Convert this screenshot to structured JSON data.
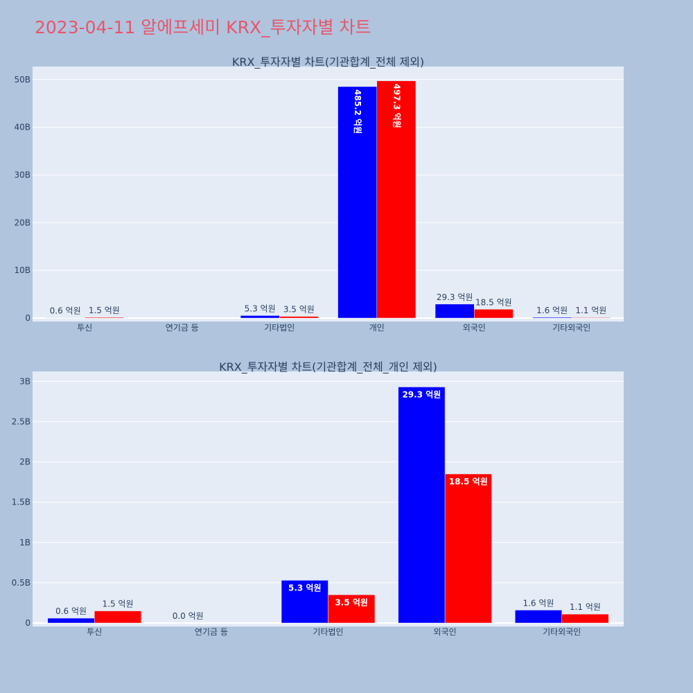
{
  "page_title": "2023-04-11 알에프세미 KRX_투자자별 차트",
  "colors": {
    "background": "#b0c4de",
    "plot_bg": "#e5ecf6",
    "grid": "#ffffff",
    "title": "#e8556a",
    "text": "#2a3f5f",
    "series_a": "#0000ff",
    "series_b": "#ff0000"
  },
  "chart_data": [
    {
      "type": "bar",
      "title": "KRX_투자자별 차트(기관합계_전체 제외)",
      "categories": [
        "투신",
        "연기금 등",
        "기타법인",
        "개인",
        "외국인",
        "기타외국인"
      ],
      "series": [
        {
          "color": "#0000ff",
          "values": [
            60000000,
            null,
            530000000,
            48520000000,
            2930000000,
            160000000
          ],
          "labels": [
            "0.6 억원",
            "",
            "5.3 억원",
            "485.2 억원",
            "29.3 억원",
            "1.6 억원"
          ]
        },
        {
          "color": "#ff0000",
          "values": [
            150000000,
            null,
            350000000,
            49730000000,
            1850000000,
            110000000
          ],
          "labels": [
            "1.5 억원",
            "",
            "3.5 억원",
            "497.3 억원",
            "18.5 억원",
            "1.1 억원"
          ]
        }
      ],
      "yticks": [
        0,
        10000000000,
        20000000000,
        30000000000,
        40000000000,
        50000000000
      ],
      "ytick_labels": [
        "0",
        "10B",
        "20B",
        "30B",
        "40B",
        "50B"
      ],
      "ylim": [
        0,
        52000000000
      ],
      "grid": true,
      "legend": "none"
    },
    {
      "type": "bar",
      "title": "KRX_투자자별 차트(기관합계_전체_개인 제외)",
      "categories": [
        "투신",
        "연기금 등",
        "기타법인",
        "외국인",
        "기타외국인"
      ],
      "series": [
        {
          "color": "#0000ff",
          "values": [
            60000000,
            0,
            530000000,
            2930000000,
            160000000
          ],
          "labels": [
            "0.6 억원",
            "0.0 억원",
            "5.3 억원",
            "29.3 억원",
            "1.6 억원"
          ]
        },
        {
          "color": "#ff0000",
          "values": [
            150000000,
            null,
            350000000,
            1850000000,
            110000000
          ],
          "labels": [
            "1.5 억원",
            "",
            "3.5 억원",
            "18.5 억원",
            "1.1 억원"
          ]
        }
      ],
      "yticks": [
        0,
        500000000,
        1000000000,
        1500000000,
        2000000000,
        2500000000,
        3000000000
      ],
      "ytick_labels": [
        "0",
        "0.5B",
        "1B",
        "1.5B",
        "2B",
        "2.5B",
        "3B"
      ],
      "ylim": [
        0,
        3080000000
      ],
      "grid": true,
      "legend": "none"
    }
  ]
}
